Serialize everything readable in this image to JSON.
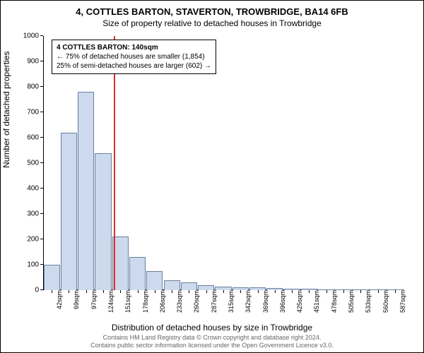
{
  "titles": {
    "main": "4, COTTLES BARTON, STAVERTON, TROWBRIDGE, BA14 6FB",
    "sub": "Size of property relative to detached houses in Trowbridge"
  },
  "axes": {
    "y_label": "Number of detached properties",
    "x_label": "Distribution of detached houses by size in Trowbridge",
    "y_max": 1000,
    "y_tick_step": 100,
    "y_ticks": [
      0,
      100,
      200,
      300,
      400,
      500,
      600,
      700,
      800,
      900,
      1000
    ],
    "x_ticks": [
      "42sqm",
      "69sqm",
      "97sqm",
      "124sqm",
      "151sqm",
      "178sqm",
      "206sqm",
      "233sqm",
      "260sqm",
      "287sqm",
      "315sqm",
      "342sqm",
      "369sqm",
      "396sqm",
      "425sqm",
      "451sqm",
      "478sqm",
      "505sqm",
      "533sqm",
      "560sqm",
      "587sqm"
    ]
  },
  "bars": {
    "values": [
      100,
      620,
      780,
      540,
      210,
      130,
      75,
      40,
      30,
      20,
      15,
      12,
      10,
      8,
      6,
      5,
      4,
      3,
      2,
      1,
      1
    ],
    "color": "#cdd9ed",
    "border_color": "#6a7fa3",
    "width_fraction": 0.95
  },
  "reference": {
    "value_sqm": 140,
    "position_index": 3.6,
    "color": "#d83030"
  },
  "annotation": {
    "line1": "4 COTTLES BARTON: 140sqm",
    "line2": "← 75% of detached houses are smaller (1,854)",
    "line3": "25% of semi-detached houses are larger (602) →"
  },
  "footer": {
    "line1": "Contains HM Land Registry data © Crown copyright and database right 2024.",
    "line2": "Contains public sector information licensed under the Open Government Licence v3.0."
  },
  "style": {
    "background_color": "#ffffff",
    "text_color": "#000000",
    "border_color": "#000000"
  }
}
